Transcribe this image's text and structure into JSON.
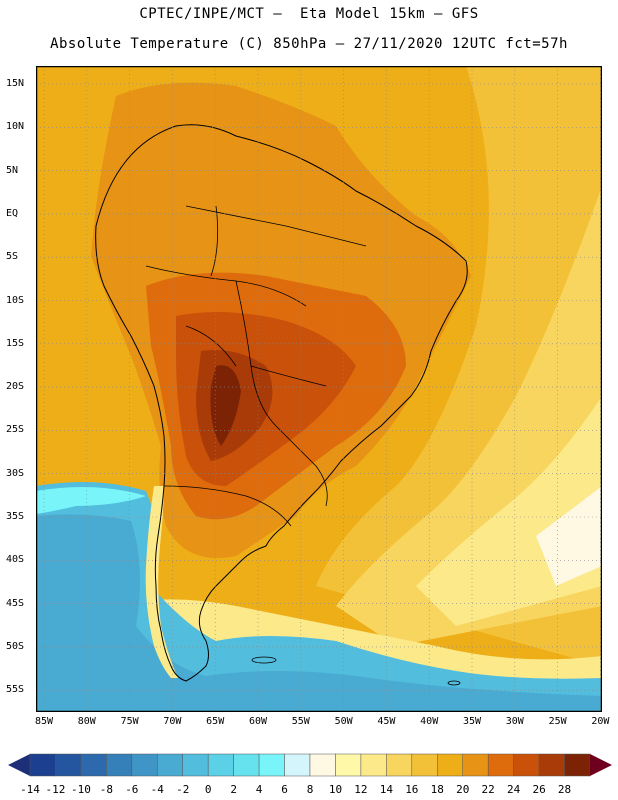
{
  "title_line1": "CPTEC/INPE/MCT –  Eta Model 15km – GFS",
  "title_line2": "Absolute Temperature (C) 850hPa – 27/11/2020 12UTC fct=57h",
  "lat_labels": [
    "15N",
    "10N",
    "5N",
    "EQ",
    "5S",
    "10S",
    "15S",
    "20S",
    "25S",
    "30S",
    "35S",
    "40S",
    "45S",
    "50S",
    "55S"
  ],
  "lon_labels": [
    "85W",
    "80W",
    "75W",
    "70W",
    "65W",
    "60W",
    "55W",
    "50W",
    "45W",
    "40W",
    "35W",
    "30W",
    "25W",
    "20W"
  ],
  "colorbar": {
    "labels": [
      "-14",
      "-12",
      "-10",
      "-8",
      "-6",
      "-4",
      "-2",
      "0",
      "2",
      "4",
      "6",
      "8",
      "10",
      "12",
      "14",
      "16",
      "18",
      "20",
      "22",
      "24",
      "26",
      "28"
    ],
    "colors": [
      "#1c3f8f",
      "#24559f",
      "#2c6aad",
      "#3580b9",
      "#3f96c6",
      "#49aad2",
      "#52bddd",
      "#5bd0e6",
      "#66e2ee",
      "#79f4f8",
      "#d3f5fb",
      "#fff8e3",
      "#fff8a8",
      "#fbe98a",
      "#f7d55e",
      "#f3c138",
      "#eeae17",
      "#e79315",
      "#de6c0c",
      "#c9510a",
      "#a83b08",
      "#7c2306"
    ],
    "low_arrow": "#1c2f78",
    "high_arrow": "#6e001e"
  },
  "map": {
    "land_color": "#000000",
    "grid_color": "#888888",
    "ocean_warm": "#f2b21a",
    "ocean_mid": "#f6cf55",
    "ocean_cool": "#fbe98a",
    "cold_cyan": "#52bddd",
    "hot_brown": "#a83b08",
    "hottest": "#7c2306"
  }
}
